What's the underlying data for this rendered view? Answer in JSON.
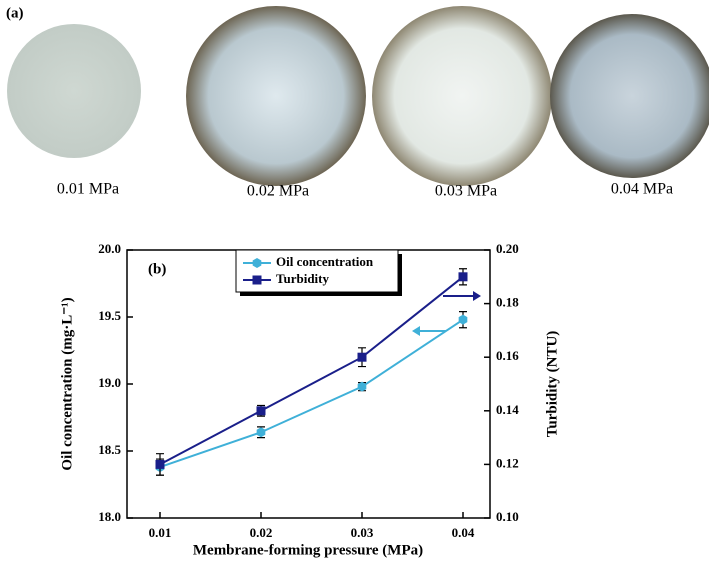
{
  "panel_a": {
    "label": "(a)",
    "captions": [
      "0.01 MPa",
      "0.02 MPa",
      "0.03 MPa",
      "0.04 MPa"
    ]
  },
  "chart_data": {
    "type": "line",
    "panel_label": "(b)",
    "x_label": "Membrane-forming pressure (MPa)",
    "y_label": "Oil concentration (mg·L⁻¹)",
    "y2_label": "Turbidity (NTU)",
    "categories": [
      "0.01",
      "0.02",
      "0.03",
      "0.04"
    ],
    "series": [
      {
        "name": "Oil concentration",
        "color": "#3fb0d8",
        "marker": "hexagon",
        "values": [
          18.38,
          18.64,
          18.98,
          19.48
        ],
        "errors": [
          0.06,
          0.04,
          0.03,
          0.06
        ]
      },
      {
        "name": "Turbidity",
        "color": "#1a1f8a",
        "marker": "square",
        "axis": "y2",
        "values": [
          0.12,
          0.14,
          0.16,
          0.19
        ],
        "errors": [
          0.004,
          0.002,
          0.0035,
          0.003
        ]
      }
    ],
    "ylim": [
      18,
      20
    ],
    "yticks": [
      {
        "value": 18,
        "label": "18.0"
      },
      18.5,
      {
        "value": 19,
        "label": "19.0"
      },
      19.5,
      {
        "value": 20,
        "label": "20.0"
      }
    ],
    "y2lim": [
      0.1,
      0.2
    ],
    "y2ticks": [
      {
        "value": 0.1,
        "label": "0.10"
      },
      0.12,
      0.14,
      0.16,
      0.18,
      {
        "value": 0.2,
        "label": "0.20"
      }
    ],
    "legend": "upper-left"
  }
}
